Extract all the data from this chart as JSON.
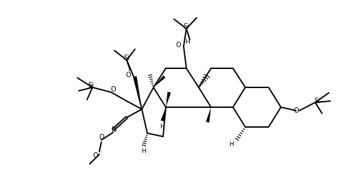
{
  "bg": "#ffffff",
  "lc": "#000000",
  "figsize": [
    5.06,
    2.68
  ],
  "dpi": 100,
  "xlim": [
    0,
    506
  ],
  "ylim": [
    0,
    268
  ]
}
